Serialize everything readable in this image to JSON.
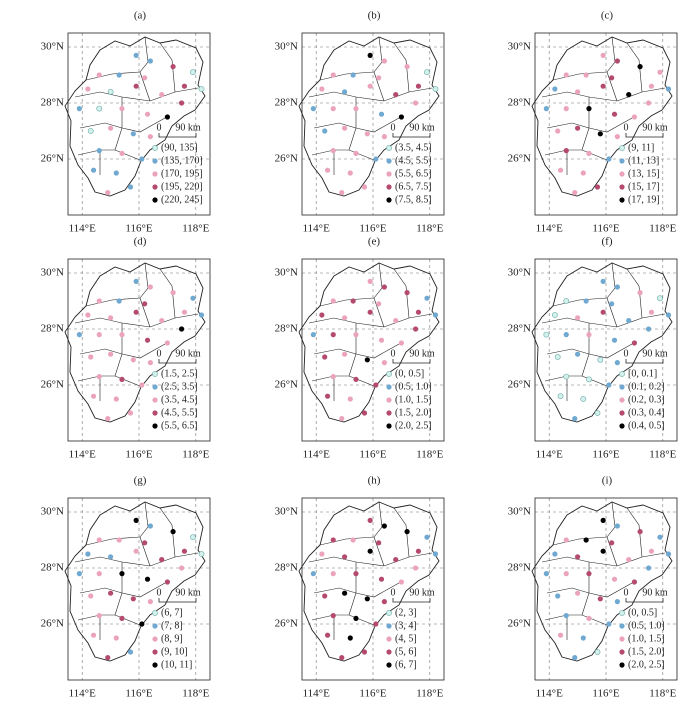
{
  "xlim": [
    113.5,
    118.5
  ],
  "ylim": [
    24,
    30.5
  ],
  "lon_ticks": [
    {
      "value": 114,
      "label": "114°E"
    },
    {
      "value": 116,
      "label": "116°E"
    },
    {
      "value": 118,
      "label": "118°E"
    }
  ],
  "lat_ticks": [
    {
      "value": 26,
      "label": "26°N"
    },
    {
      "value": 28,
      "label": "28°N"
    },
    {
      "value": 30,
      "label": "30°N"
    }
  ],
  "scale": {
    "start": "0",
    "end": "90 km"
  },
  "colors": [
    "#d4f0ea",
    "#6fa8d0",
    "#eba3bd",
    "#b44a70",
    "#000000"
  ],
  "stations": {
    "lon": [
      115.9,
      116.4,
      117.2,
      117.9,
      114.6,
      115.3,
      116.2,
      117.6,
      118.2,
      114.2,
      115.0,
      115.9,
      116.8,
      117.5,
      113.9,
      114.6,
      115.4,
      116.3,
      117.0,
      114.3,
      115.0,
      115.8,
      116.4,
      114.6,
      115.4,
      116.1,
      114.4,
      115.2,
      115.7,
      114.9
    ],
    "lat": [
      29.7,
      29.5,
      29.3,
      29.1,
      29.0,
      29.0,
      28.9,
      28.6,
      28.5,
      28.5,
      28.4,
      28.6,
      28.3,
      28.0,
      27.8,
      27.8,
      27.8,
      27.6,
      27.5,
      27.0,
      27.1,
      26.9,
      26.8,
      26.3,
      26.2,
      26.0,
      25.6,
      25.5,
      25.0,
      24.8
    ]
  },
  "panels": [
    {
      "label": "(a)",
      "legend": [
        "(90, 135]",
        "(135, 170]",
        "(170, 195]",
        "(195, 220]",
        "(220, 245]"
      ],
      "classes": [
        1,
        1,
        3,
        0,
        2,
        1,
        2,
        3,
        0,
        2,
        0,
        3,
        2,
        3,
        1,
        0,
        2,
        2,
        4,
        0,
        2,
        1,
        2,
        1,
        2,
        1,
        1,
        1,
        1,
        2
      ]
    },
    {
      "label": "(b)",
      "legend": [
        "(3.5, 4.5]",
        "(4.5, 5.5]",
        "(5.5, 6.5]",
        "(6.5, 7.5]",
        "(7.5, 8.5]"
      ],
      "classes": [
        4,
        2,
        2,
        0,
        2,
        1,
        2,
        3,
        0,
        2,
        1,
        2,
        3,
        2,
        1,
        2,
        2,
        1,
        4,
        1,
        2,
        2,
        2,
        2,
        2,
        1,
        2,
        2,
        2,
        2
      ]
    },
    {
      "label": "(c)",
      "legend": [
        "(9, 11]",
        "(11, 13]",
        "(13, 15]",
        "(15, 17]",
        "(17, 19]"
      ],
      "classes": [
        2,
        3,
        4,
        2,
        2,
        2,
        3,
        2,
        1,
        1,
        2,
        3,
        4,
        2,
        1,
        2,
        4,
        3,
        2,
        2,
        3,
        4,
        2,
        3,
        2,
        1,
        2,
        2,
        3,
        2
      ]
    },
    {
      "label": "(d)",
      "legend": [
        "(1.5, 2.5]",
        "(2.5, 3.5]",
        "(3.5, 4.5]",
        "(4.5, 5.5]",
        "(5.5, 6.5]"
      ],
      "classes": [
        1,
        2,
        2,
        1,
        2,
        1,
        3,
        2,
        1,
        2,
        2,
        3,
        2,
        4,
        1,
        2,
        2,
        3,
        2,
        2,
        2,
        2,
        2,
        2,
        3,
        2,
        2,
        2,
        2,
        2
      ]
    },
    {
      "label": "(e)",
      "legend": [
        "(0, 0.5]",
        "(0.5, 1.0]",
        "(1.0, 1.5]",
        "(1.5, 2.0]",
        "(2.0, 2.5]"
      ],
      "classes": [
        2,
        3,
        3,
        1,
        2,
        3,
        2,
        3,
        1,
        3,
        2,
        3,
        2,
        3,
        1,
        3,
        2,
        2,
        2,
        3,
        2,
        4,
        2,
        2,
        3,
        3,
        3,
        2,
        3,
        2
      ]
    },
    {
      "label": "(f)",
      "legend": [
        "[0, 0.1]",
        "(0.1, 0.2]",
        "(0.2, 0.3]",
        "(0.3, 0.4]",
        "(0.4, 0.5]"
      ],
      "classes": [
        1,
        1,
        2,
        0,
        0,
        1,
        1,
        2,
        1,
        0,
        2,
        3,
        1,
        1,
        0,
        1,
        2,
        1,
        3,
        0,
        1,
        0,
        1,
        0,
        0,
        1,
        0,
        0,
        0,
        1
      ]
    },
    {
      "label": "(g)",
      "legend": [
        "(6, 7]",
        "(7, 8]",
        "(8, 9]",
        "(9, 10]",
        "(10, 11]"
      ],
      "classes": [
        4,
        1,
        4,
        0,
        2,
        2,
        3,
        3,
        0,
        1,
        1,
        2,
        3,
        2,
        1,
        2,
        4,
        4,
        3,
        2,
        3,
        3,
        2,
        2,
        3,
        4,
        2,
        2,
        1,
        3
      ]
    },
    {
      "label": "(h)",
      "legend": [
        "(2, 3]",
        "(3, 4]",
        "(4, 5]",
        "(5, 6]",
        "(6, 7]"
      ],
      "classes": [
        3,
        4,
        4,
        1,
        3,
        2,
        3,
        3,
        1,
        2,
        3,
        4,
        3,
        2,
        1,
        2,
        3,
        3,
        2,
        3,
        4,
        4,
        3,
        3,
        4,
        3,
        3,
        4,
        3,
        3
      ]
    },
    {
      "label": "(i)",
      "legend": [
        "(0, 0.5]",
        "(0.5, 1.0]",
        "(1.0, 1.5]",
        "(1.5, 2.0]",
        "(2.0, 2.5]"
      ],
      "classes": [
        4,
        1,
        3,
        1,
        2,
        4,
        3,
        2,
        1,
        1,
        3,
        4,
        2,
        1,
        1,
        2,
        3,
        2,
        3,
        1,
        2,
        3,
        1,
        1,
        2,
        1,
        2,
        1,
        0,
        1
      ]
    }
  ]
}
